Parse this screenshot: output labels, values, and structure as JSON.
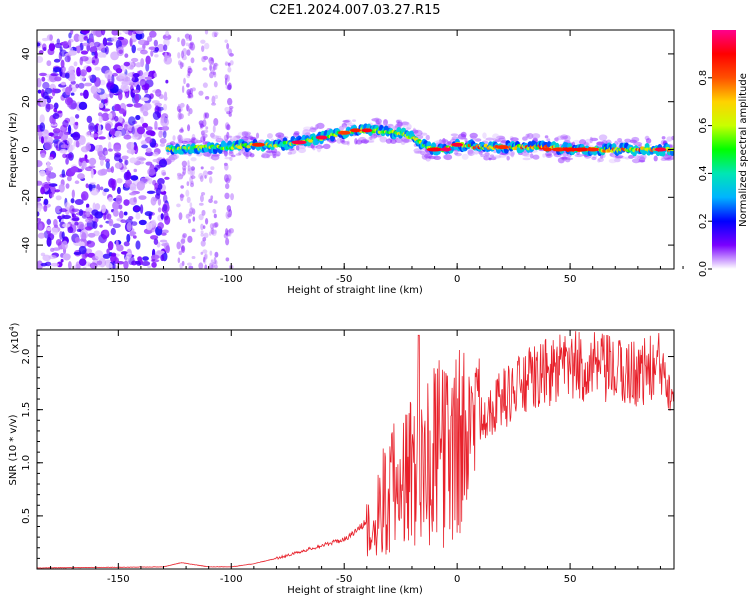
{
  "title": "C2E1.2024.007.03.27.R15",
  "chart_data": [
    {
      "type": "heatmap",
      "xlabel": "Height of straight line (km)",
      "ylabel": "Frequency (Hz)",
      "xlim": [
        -186,
        96
      ],
      "ylim": [
        -50,
        50
      ],
      "xticks": [
        "-150",
        "-100",
        "-50",
        "0",
        "50"
      ],
      "yticks": [
        "-40",
        "-20",
        "0",
        "20",
        "40"
      ],
      "ridge": {
        "x": [
          -128,
          -110,
          -100,
          -90,
          -80,
          -70,
          -60,
          -50,
          -45,
          -40,
          -35,
          -30,
          -25,
          -20,
          -15,
          -10,
          -5,
          0,
          10,
          20,
          30,
          40,
          50,
          60,
          70,
          80,
          90,
          96
        ],
        "y": [
          0,
          1,
          1,
          2,
          2,
          3,
          5,
          7,
          8,
          8,
          8,
          7,
          7,
          5,
          2,
          0,
          0,
          2,
          1,
          1,
          1,
          1,
          0,
          0,
          0,
          0,
          0,
          0
        ]
      },
      "colorbar": {
        "label": "Normalized spectral amplitude",
        "range": [
          0,
          1
        ],
        "ticks": [
          "0.0",
          "0.2",
          "0.4",
          "0.6",
          "0.8"
        ],
        "colors": [
          "#ffffff",
          "#7a00ff",
          "#0000ff",
          "#00b4ff",
          "#00e6b4",
          "#00ff00",
          "#c8ff00",
          "#ffd200",
          "#ff5000",
          "#ff0000",
          "#ff008c"
        ]
      },
      "noise_region_end_km": -128
    },
    {
      "type": "line",
      "xlabel": "Height of straight line (km)",
      "ylabel": "SNR (10 * v/v)",
      "multiplier": "(x10",
      "multiplier_exp": "4",
      "multiplier_close": ")",
      "xlim": [
        -186,
        96
      ],
      "ylim": [
        0,
        2.25
      ],
      "xticks": [
        "-150",
        "-100",
        "-50",
        "0",
        "50"
      ],
      "yticks": [
        "0.5",
        "1.0",
        "1.5",
        "2.0"
      ],
      "line_color": "#e8202a",
      "envelope": {
        "x": [
          -186,
          -130,
          -122,
          -110,
          -100,
          -90,
          -80,
          -70,
          -60,
          -50,
          -45,
          -40,
          -35,
          -30,
          -25,
          -20,
          -15,
          -10,
          -5,
          0,
          5,
          10,
          20,
          30,
          40,
          50,
          60,
          70,
          80,
          90,
          96
        ],
        "y": [
          0.01,
          0.02,
          0.06,
          0.02,
          0.02,
          0.05,
          0.1,
          0.16,
          0.22,
          0.28,
          0.35,
          0.45,
          0.65,
          0.85,
          1.0,
          1.1,
          1.2,
          1.25,
          1.3,
          1.35,
          1.4,
          1.45,
          1.6,
          1.75,
          1.85,
          1.9,
          1.9,
          1.85,
          1.85,
          1.9,
          1.75
        ]
      }
    }
  ]
}
